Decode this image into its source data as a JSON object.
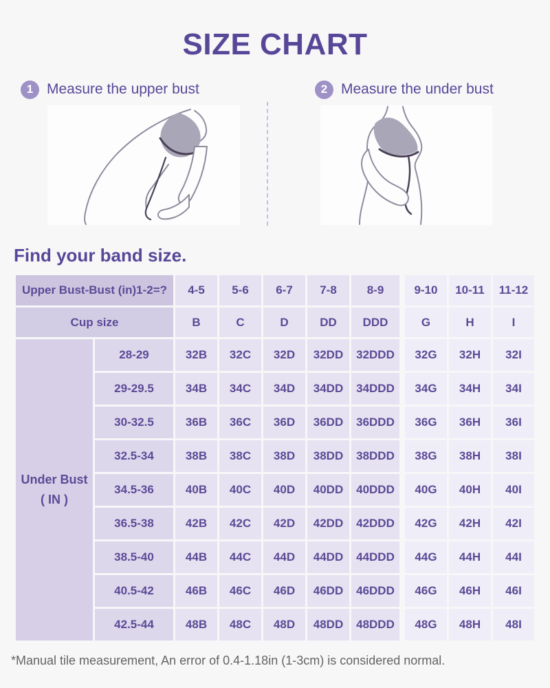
{
  "page": {
    "title": "SIZE CHART",
    "footnote": "*Manual tile measurement, An error of 0.4-1.18in (1-3cm) is considered normal."
  },
  "steps": [
    {
      "number": "1",
      "label": "Measure the upper bust"
    },
    {
      "number": "2",
      "label": "Measure the under bust"
    }
  ],
  "icons": {
    "step1_badge": "circled-1-badge",
    "step2_badge": "circled-2-badge",
    "step1_figure": "upper-bust-measure-figure",
    "step2_figure": "under-bust-measure-figure"
  },
  "band_section": {
    "heading": "Find your band size."
  },
  "table": {
    "header_row1": {
      "label": "Upper Bust-Bust (in)1-2=?",
      "values": [
        "4-5",
        "5-6",
        "6-7",
        "7-8",
        "8-9",
        "9-10",
        "10-11",
        "11-12"
      ]
    },
    "header_row2": {
      "label": "Cup size",
      "values": [
        "B",
        "C",
        "D",
        "DD",
        "DDD",
        "G",
        "H",
        "I"
      ]
    },
    "row_header": {
      "line1": "Under Bust",
      "line2": "( IN )"
    },
    "rows": [
      {
        "range": "28-29",
        "cells": [
          "32B",
          "32C",
          "32D",
          "32DD",
          "32DDD",
          "32G",
          "32H",
          "32I"
        ]
      },
      {
        "range": "29-29.5",
        "cells": [
          "34B",
          "34C",
          "34D",
          "34DD",
          "34DDD",
          "34G",
          "34H",
          "34I"
        ]
      },
      {
        "range": "30-32.5",
        "cells": [
          "36B",
          "36C",
          "36D",
          "36DD",
          "36DDD",
          "36G",
          "36H",
          "36I"
        ]
      },
      {
        "range": "32.5-34",
        "cells": [
          "38B",
          "38C",
          "38D",
          "38DD",
          "38DDD",
          "38G",
          "38H",
          "38I"
        ]
      },
      {
        "range": "34.5-36",
        "cells": [
          "40B",
          "40C",
          "40D",
          "40DD",
          "40DDD",
          "40G",
          "40H",
          "40I"
        ]
      },
      {
        "range": "36.5-38",
        "cells": [
          "42B",
          "42C",
          "42D",
          "42DD",
          "42DDD",
          "42G",
          "42H",
          "42I"
        ]
      },
      {
        "range": "38.5-40",
        "cells": [
          "44B",
          "44C",
          "44D",
          "44DD",
          "44DDD",
          "44G",
          "44H",
          "44I"
        ]
      },
      {
        "range": "40.5-42",
        "cells": [
          "46B",
          "46C",
          "46D",
          "46DD",
          "46DDD",
          "46G",
          "46H",
          "46I"
        ]
      },
      {
        "range": "42.5-44",
        "cells": [
          "48B",
          "48C",
          "48D",
          "48DD",
          "48DDD",
          "48G",
          "48H",
          "48I"
        ]
      }
    ]
  },
  "colors": {
    "accent_purple": "#584798",
    "table_text": "#5b4a96",
    "badge_bg": "#9e91c6",
    "header_label_bg": "#cdc5e0",
    "cup_label_bg": "#d3cce5",
    "side_label_bg": "#d6cfe7",
    "range_cell_bg": "#ddd7ec",
    "data_cell_bg_left": "#e6e2f1",
    "data_cell_bg_right": "#efedf7",
    "page_bg": "#f7f7f8",
    "footnote_text": "#646464",
    "figure_line": "#8f8c9c",
    "bra_fill": "#a9a6b7",
    "tape_color": "#4a4156"
  }
}
